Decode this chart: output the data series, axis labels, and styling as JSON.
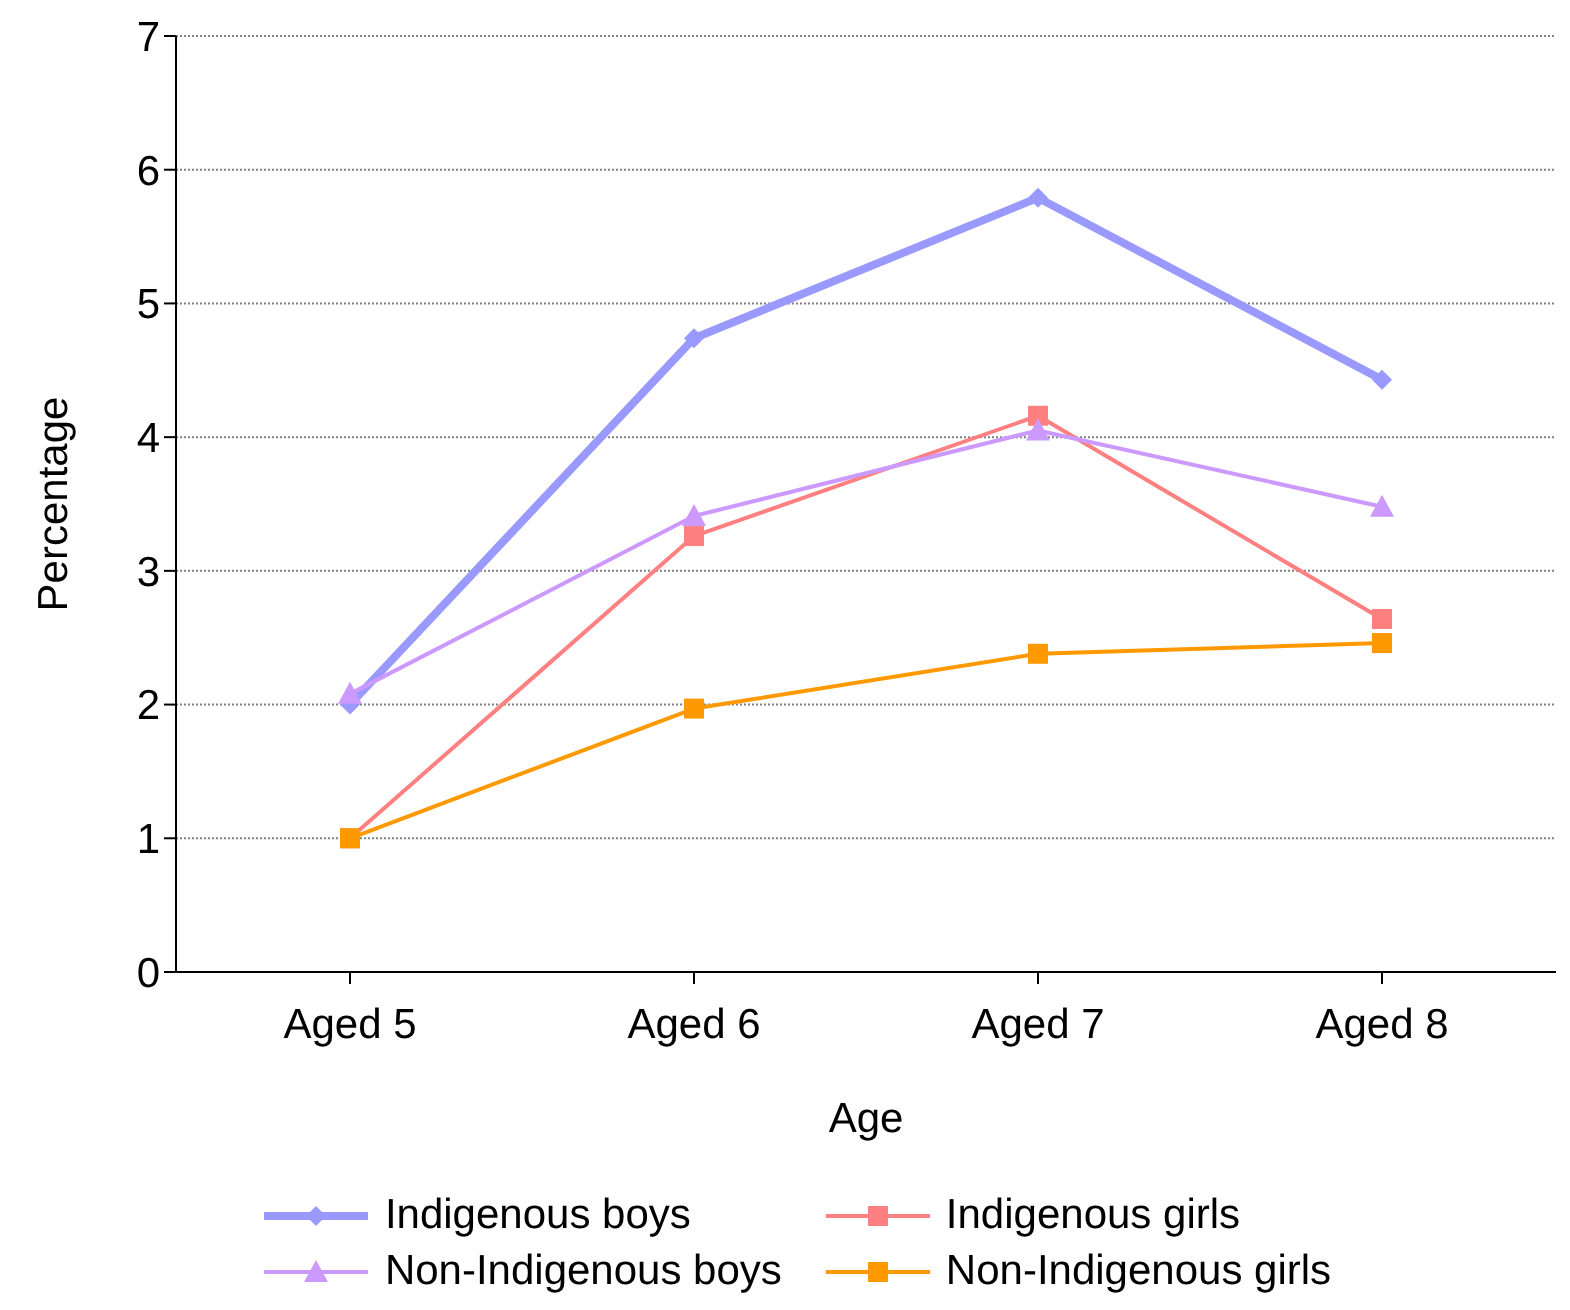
{
  "chart_data": {
    "type": "line",
    "xlabel": "Age",
    "ylabel": "Percentage",
    "categories": [
      "Aged 5",
      "Aged 6",
      "Aged 7",
      "Aged 8"
    ],
    "series": [
      {
        "name": "Indigenous boys",
        "color": "#9999ff",
        "marker": "diamond",
        "values": [
          2.0,
          4.74,
          5.79,
          4.43
        ]
      },
      {
        "name": "Indigenous girls",
        "color": "#ff8080",
        "marker": "square",
        "values": [
          1.0,
          3.26,
          4.16,
          2.64
        ]
      },
      {
        "name": "Non-Indigenous boys",
        "color": "#cc99ff",
        "marker": "triangle",
        "values": [
          2.08,
          3.41,
          4.05,
          3.48
        ]
      },
      {
        "name": "Non-Indigenous girls",
        "color": "#ff9900",
        "marker": "square",
        "values": [
          1.0,
          1.97,
          2.38,
          2.46
        ]
      }
    ],
    "ylim": [
      0,
      7
    ],
    "yticks": [
      0,
      1,
      2,
      3,
      4,
      5,
      6,
      7
    ],
    "grid": "y",
    "legend": "bottom",
    "line_style": "solid"
  }
}
